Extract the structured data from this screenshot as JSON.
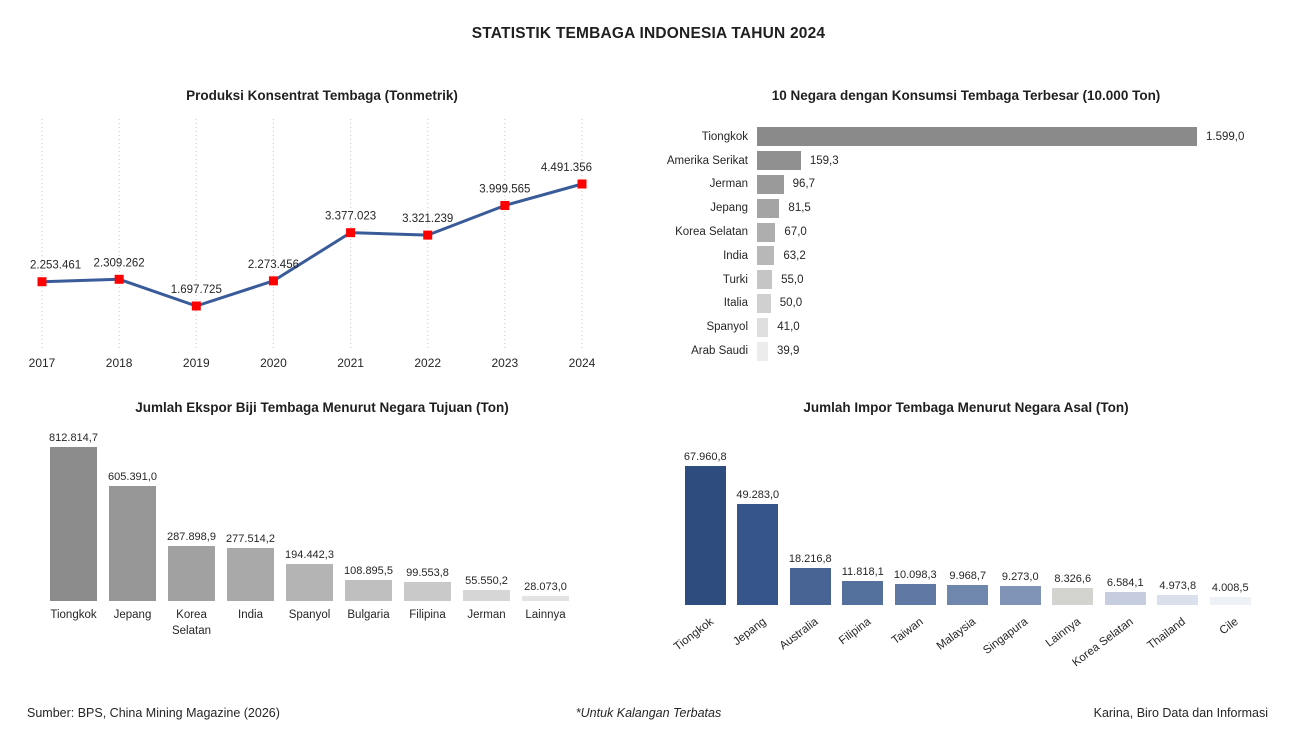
{
  "page": {
    "title": "STATISTIK TEMBAGA INDONESIA TAHUN 2024",
    "footer": {
      "source": "Sumber: BPS, China Mining Magazine (2026)",
      "note": "*Untuk Kalangan Terbatas",
      "credit": "Karina, Biro Data dan Informasi"
    }
  },
  "chart_data": [
    {
      "id": "produksi",
      "type": "line",
      "title": "Produksi Konsentrat Tembaga (Tonmetrik)",
      "xlabel": "",
      "ylabel": "",
      "categories": [
        "2017",
        "2018",
        "2019",
        "2020",
        "2021",
        "2022",
        "2023",
        "2024"
      ],
      "values": [
        2253461,
        2309262,
        1697725,
        2273456,
        3377023,
        3321239,
        3999565,
        4491356
      ],
      "labels": [
        "2.253.461",
        "2.309.262",
        "1.697.725",
        "2.273.456",
        "3.377.023",
        "3.321.239",
        "3.999.565",
        "4.491.356"
      ],
      "line_color": "#3A5B99",
      "marker_color": "#FF0000",
      "marker_shape": "square",
      "grid": "vertical-dotted",
      "grid_color": "#C6C6C6",
      "legend": "none"
    },
    {
      "id": "konsumsi",
      "type": "bar",
      "orientation": "horizontal",
      "title": "10 Negara dengan Konsumsi Tembaga Terbesar (10.000 Ton)",
      "xlabel": "",
      "ylabel": "",
      "categories": [
        "Tiongkok",
        "Amerika Serikat",
        "Jerman",
        "Jepang",
        "Korea Selatan",
        "India",
        "Turki",
        "Italia",
        "Spanyol",
        "Arab Saudi"
      ],
      "values": [
        1599.0,
        159.3,
        96.7,
        81.5,
        67.0,
        63.2,
        55.0,
        50.0,
        41.0,
        39.9
      ],
      "labels": [
        "1.599,0",
        "159,3",
        "96,7",
        "81,5",
        "67,0",
        "63,2",
        "55,0",
        "50,0",
        "41,0",
        "39,9"
      ],
      "colors": [
        "#8A8A8A",
        "#909090",
        "#9A9A9A",
        "#A4A4A4",
        "#AEAEAE",
        "#B8B8B8",
        "#C5C5C5",
        "#D0D0D0",
        "#DEDEDE",
        "#ECECEC"
      ],
      "grid": "off",
      "legend": "none"
    },
    {
      "id": "ekspor",
      "type": "bar",
      "orientation": "vertical",
      "title": "Jumlah Ekspor Biji Tembaga Menurut Negara Tujuan (Ton)",
      "xlabel": "",
      "ylabel": "",
      "categories": [
        "Tiongkok",
        "Jepang",
        "Korea Selatan",
        "India",
        "Spanyol",
        "Bulgaria",
        "Filipina",
        "Jerman",
        "Lainnya"
      ],
      "values": [
        812814.7,
        605391.0,
        287898.9,
        277514.2,
        194442.3,
        108895.5,
        99553.8,
        55550.2,
        28073.0
      ],
      "labels": [
        "812.814,7",
        "605.391,0",
        "287.898,9",
        "277.514,2",
        "194.442,3",
        "108.895,5",
        "99.553,8",
        "55.550,2",
        "28.073,0"
      ],
      "colors": [
        "#8C8C8C",
        "#969696",
        "#A1A1A1",
        "#A9A9A9",
        "#B4B4B4",
        "#BFBFBF",
        "#C9C9C9",
        "#D6D6D6",
        "#E3E3E3"
      ],
      "grid": "off",
      "legend": "none"
    },
    {
      "id": "impor",
      "type": "bar",
      "orientation": "vertical",
      "title": "Jumlah Impor Tembaga Menurut Negara Asal (Ton)",
      "xlabel": "",
      "ylabel": "",
      "categories": [
        "Tiongkok",
        "Jepang",
        "Australia",
        "Filipina",
        "Taiwan",
        "Malaysia",
        "Singapura",
        "Lainnya",
        "Korea Selatan",
        "Thailand",
        "Cile"
      ],
      "values": [
        67960.8,
        49283.0,
        18216.8,
        11818.1,
        10098.3,
        9968.7,
        9273.0,
        8326.6,
        6584.1,
        4973.8,
        4008.5
      ],
      "labels": [
        "67.960,8",
        "49.283,0",
        "18.216,8",
        "11.818,1",
        "10.098,3",
        "9.968,7",
        "9.273,0",
        "8.326,6",
        "6.584,1",
        "4.973,8",
        "4.008,5"
      ],
      "colors": [
        "#2E4D7E",
        "#36568B",
        "#476494",
        "#54709D",
        "#6079A4",
        "#6F86AD",
        "#8094B8",
        "#D3D3CF",
        "#C5CDDE",
        "#D9DFEB",
        "#EDF0F5"
      ],
      "category_label_rotation": -37,
      "grid": "off",
      "legend": "none"
    }
  ]
}
